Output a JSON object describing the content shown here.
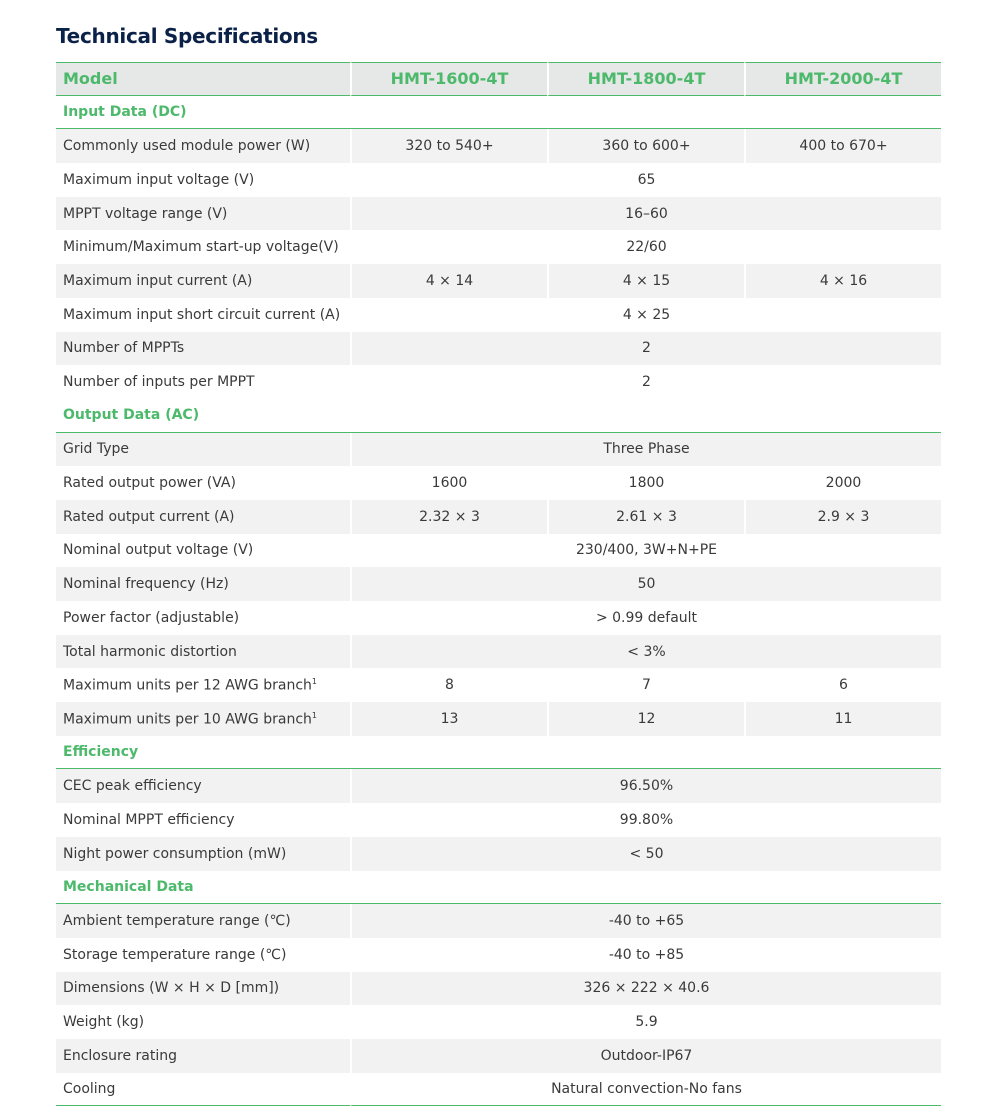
{
  "title": "Technical Specifications",
  "header": {
    "label": "Model",
    "models": [
      "HMT-1600-4T",
      "HMT-1800-4T",
      "HMT-2000-4T"
    ]
  },
  "colors": {
    "accent": "#4cb96b",
    "title": "#0b2147",
    "stripe": "#f2f2f2",
    "header_bg": "#e6e7e7"
  },
  "sections": [
    {
      "title": "Input Data (DC)",
      "rows": [
        {
          "label": "Commonly used module power (W)",
          "values": [
            "320 to 540+",
            "360 to 600+",
            "400 to 670+"
          ]
        },
        {
          "label": "Maximum input voltage (V)",
          "values": [
            "65"
          ]
        },
        {
          "label": "MPPT voltage range (V)",
          "values": [
            "16–60"
          ]
        },
        {
          "label": "Minimum/Maximum start-up voltage(V)",
          "values": [
            "22/60"
          ]
        },
        {
          "label": "Maximum input current (A)",
          "values": [
            "4 × 14",
            "4 × 15",
            "4 × 16"
          ]
        },
        {
          "label": "Maximum input short circuit current (A)",
          "values": [
            "4 × 25"
          ]
        },
        {
          "label": "Number of MPPTs",
          "values": [
            "2"
          ]
        },
        {
          "label": "Number of inputs per MPPT",
          "values": [
            "2"
          ]
        }
      ]
    },
    {
      "title": "Output Data (AC)",
      "rows": [
        {
          "label": "Grid Type",
          "values": [
            "Three Phase"
          ]
        },
        {
          "label": "Rated output power (VA)",
          "values": [
            "1600",
            "1800",
            "2000"
          ]
        },
        {
          "label": "Rated output current (A)",
          "values": [
            "2.32 × 3",
            "2.61 × 3",
            "2.9 × 3"
          ]
        },
        {
          "label": "Nominal output voltage (V)",
          "values": [
            "230/400, 3W+N+PE"
          ]
        },
        {
          "label": "Nominal frequency (Hz)",
          "values": [
            "50"
          ]
        },
        {
          "label": "Power factor (adjustable)",
          "values": [
            "> 0.99 default"
          ]
        },
        {
          "label": "Total harmonic distortion",
          "values": [
            "< 3%"
          ]
        },
        {
          "label": "Maximum units per 12 AWG branch",
          "footnote": "1",
          "values": [
            "8",
            "7",
            "6"
          ]
        },
        {
          "label": "Maximum units per 10 AWG branch",
          "footnote": "1",
          "values": [
            "13",
            "12",
            "11"
          ]
        }
      ]
    },
    {
      "title": "Efficiency",
      "rows": [
        {
          "label": "CEC peak efficiency",
          "values": [
            "96.50%"
          ]
        },
        {
          "label": "Nominal MPPT efficiency",
          "values": [
            "99.80%"
          ]
        },
        {
          "label": "Night power consumption (mW)",
          "values": [
            "< 50"
          ]
        }
      ]
    },
    {
      "title": "Mechanical Data",
      "rows": [
        {
          "label": "Ambient temperature range (℃)",
          "values": [
            "-40 to +65"
          ]
        },
        {
          "label": "Storage temperature range (℃)",
          "values": [
            "-40 to +85"
          ]
        },
        {
          "label": "Dimensions (W × H × D [mm])",
          "values": [
            "326 × 222 × 40.6"
          ]
        },
        {
          "label": "Weight (kg)",
          "values": [
            "5.9"
          ]
        },
        {
          "label": "Enclosure rating",
          "values": [
            "Outdoor-IP67"
          ]
        },
        {
          "label": "Cooling",
          "values": [
            "Natural convection-No fans"
          ]
        }
      ]
    }
  ]
}
